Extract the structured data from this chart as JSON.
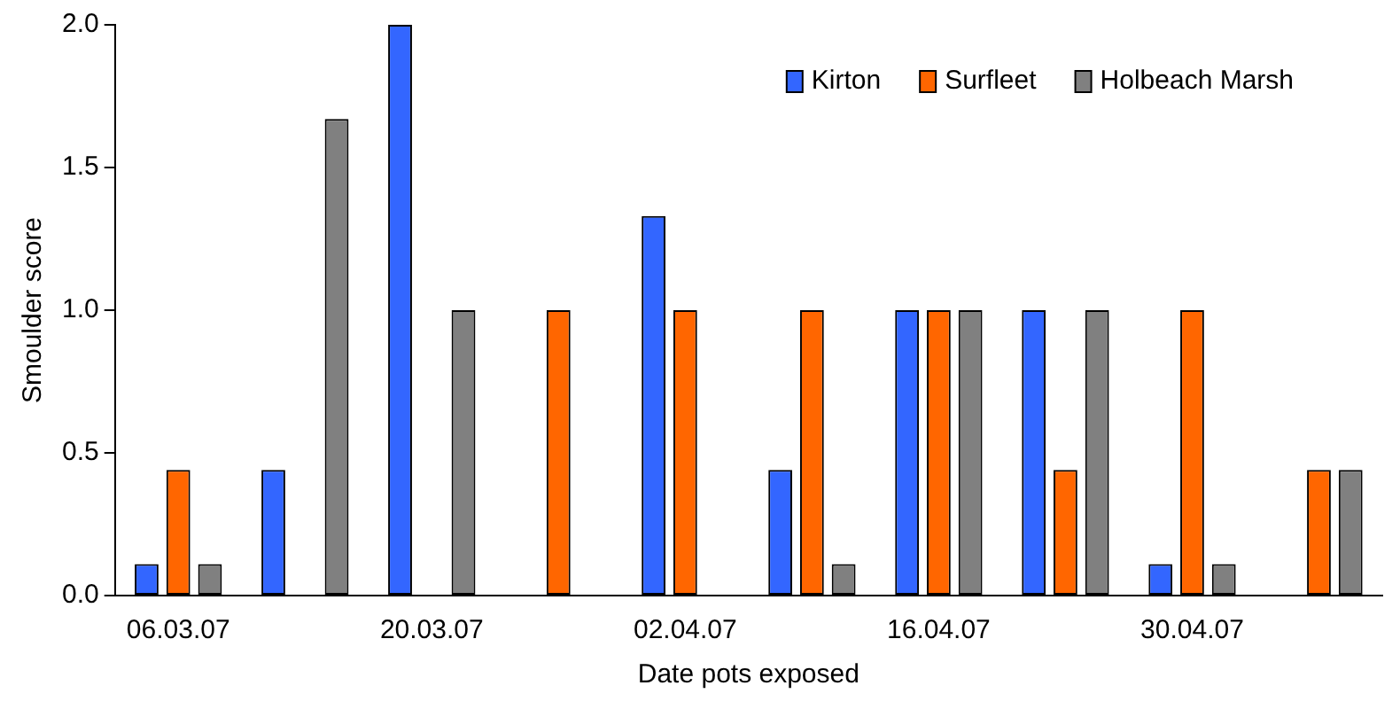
{
  "chart_data": {
    "type": "bar",
    "xlabel": "Date pots exposed",
    "ylabel": "Smoulder score",
    "categories": [
      "06.03.07",
      null,
      "20.03.07",
      null,
      "02.04.07",
      null,
      "16.04.07",
      null,
      "30.04.07",
      null
    ],
    "series": [
      {
        "name": "Kirton",
        "color": "#3366ff",
        "values": [
          0.11,
          0.44,
          2.0,
          0,
          1.33,
          0.44,
          1.0,
          1.0,
          0.11,
          0
        ]
      },
      {
        "name": "Surfleet",
        "color": "#ff6600",
        "values": [
          0.44,
          0,
          0,
          1.0,
          1.0,
          1.0,
          1.0,
          0.44,
          1.0,
          0.44
        ]
      },
      {
        "name": "Holbeach Marsh",
        "color": "#808080",
        "values": [
          0.11,
          1.67,
          1.0,
          0,
          0,
          0.11,
          1.0,
          1.0,
          0.11,
          0.44
        ]
      }
    ],
    "ylim": [
      0,
      2.0
    ],
    "yticks": [
      {
        "value": 0,
        "label": "0.0"
      },
      {
        "value": 0.5,
        "label": "0.5"
      },
      {
        "value": 1,
        "label": "1.0"
      },
      {
        "value": 1.5,
        "label": "1.5"
      },
      {
        "value": 2,
        "label": "2.0"
      }
    ],
    "grid": false,
    "legend": "top right"
  }
}
